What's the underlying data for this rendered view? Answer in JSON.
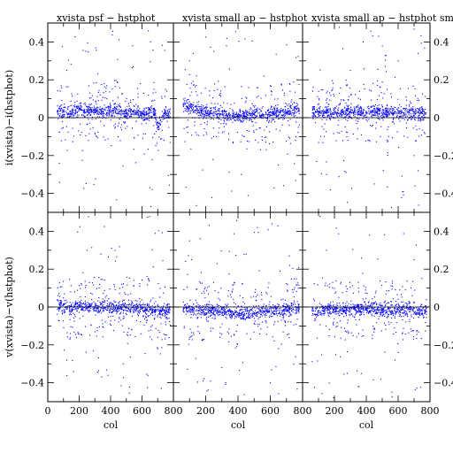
{
  "chart_data": [
    {
      "type": "scatter",
      "title": "xvista psf − hstphot",
      "xlabel": "",
      "ylabel": "i(xvista)−i(hstphot)",
      "xlim": [
        0,
        800
      ],
      "ylim": [
        -0.5,
        0.5
      ],
      "x_ticks": [],
      "y_ticks": [
        "0.4",
        "0.2",
        "0",
        "−0.2",
        "−0.4"
      ],
      "y_ticks_right": [],
      "points": [
        [
          80,
          0.035
        ],
        [
          140,
          0.02
        ],
        [
          200,
          0.05
        ],
        [
          260,
          0.03
        ],
        [
          320,
          0.04
        ],
        [
          380,
          0.025
        ],
        [
          440,
          0.045
        ],
        [
          500,
          0.02
        ],
        [
          560,
          0.035
        ],
        [
          620,
          0.015
        ],
        [
          680,
          0.03
        ],
        [
          740,
          0.02
        ],
        [
          120,
          0.25
        ],
        [
          360,
          0.18
        ],
        [
          540,
          0.38
        ],
        [
          650,
          -0.37
        ],
        [
          300,
          -0.08
        ],
        [
          700,
          -0.05
        ]
      ]
    },
    {
      "type": "scatter",
      "title": "xvista small ap − hstphot",
      "xlabel": "",
      "ylabel": "",
      "xlim": [
        0,
        800
      ],
      "ylim": [
        -0.5,
        0.5
      ],
      "x_ticks": [],
      "y_ticks": [],
      "y_ticks_right": [],
      "points": [
        [
          80,
          0.06
        ],
        [
          140,
          0.04
        ],
        [
          200,
          0.03
        ],
        [
          260,
          0.02
        ],
        [
          320,
          0.01
        ],
        [
          380,
          0.005
        ],
        [
          440,
          0.01
        ],
        [
          500,
          0.02
        ],
        [
          560,
          0.015
        ],
        [
          620,
          0.025
        ],
        [
          680,
          0.03
        ],
        [
          740,
          0.04
        ],
        [
          100,
          0.3
        ],
        [
          250,
          0.35
        ],
        [
          420,
          -0.3
        ],
        [
          560,
          0.22
        ],
        [
          650,
          -0.25
        ],
        [
          720,
          0.18
        ]
      ]
    },
    {
      "type": "scatter",
      "title": "xvista small ap − hstphot small ap",
      "xlabel": "",
      "ylabel": "",
      "xlim": [
        0,
        800
      ],
      "ylim": [
        -0.5,
        0.5
      ],
      "x_ticks": [],
      "y_ticks": [],
      "y_ticks_right": [
        "0.4",
        "0.2",
        "0",
        "−0.2",
        "−0.4"
      ],
      "points": [
        [
          80,
          0.03
        ],
        [
          140,
          0.025
        ],
        [
          200,
          0.03
        ],
        [
          260,
          0.035
        ],
        [
          320,
          0.03
        ],
        [
          380,
          0.03
        ],
        [
          440,
          0.035
        ],
        [
          500,
          0.03
        ],
        [
          560,
          0.025
        ],
        [
          620,
          0.03
        ],
        [
          680,
          0.02
        ],
        [
          740,
          0.025
        ],
        [
          150,
          -0.3
        ],
        [
          300,
          0.25
        ],
        [
          450,
          -0.35
        ],
        [
          600,
          0.3
        ],
        [
          700,
          -0.2
        ],
        [
          380,
          0.4
        ]
      ]
    },
    {
      "type": "scatter",
      "title": "",
      "xlabel": "col",
      "ylabel": "v(xvista)−v(hstphot)",
      "xlim": [
        0,
        800
      ],
      "ylim": [
        -0.5,
        0.5
      ],
      "x_ticks": [
        "0",
        "200",
        "400",
        "600",
        "800"
      ],
      "y_ticks": [
        "0.4",
        "0.2",
        "0",
        "−0.2",
        "−0.4"
      ],
      "y_ticks_right": [],
      "points": [
        [
          80,
          0.005
        ],
        [
          140,
          -0.01
        ],
        [
          200,
          0.01
        ],
        [
          260,
          0.0
        ],
        [
          320,
          -0.005
        ],
        [
          380,
          0.005
        ],
        [
          440,
          -0.01
        ],
        [
          500,
          0.0
        ],
        [
          560,
          -0.005
        ],
        [
          620,
          -0.01
        ],
        [
          680,
          -0.015
        ],
        [
          740,
          -0.02
        ],
        [
          120,
          -0.28
        ],
        [
          330,
          0.12
        ],
        [
          480,
          -0.3
        ],
        [
          640,
          0.15
        ],
        [
          700,
          -0.22
        ],
        [
          250,
          0.3
        ]
      ]
    },
    {
      "type": "scatter",
      "title": "",
      "xlabel": "col",
      "ylabel": "",
      "xlim": [
        0,
        800
      ],
      "ylim": [
        -0.5,
        0.5
      ],
      "x_ticks": [
        "200",
        "400",
        "600",
        "800"
      ],
      "y_ticks": [],
      "y_ticks_right": [],
      "points": [
        [
          80,
          -0.01
        ],
        [
          140,
          -0.02
        ],
        [
          200,
          -0.015
        ],
        [
          260,
          -0.02
        ],
        [
          320,
          -0.025
        ],
        [
          380,
          -0.03
        ],
        [
          440,
          -0.035
        ],
        [
          500,
          -0.03
        ],
        [
          560,
          -0.025
        ],
        [
          620,
          -0.02
        ],
        [
          680,
          -0.015
        ],
        [
          740,
          -0.01
        ],
        [
          100,
          0.35
        ],
        [
          300,
          -0.32
        ],
        [
          450,
          0.28
        ],
        [
          600,
          -0.4
        ],
        [
          720,
          0.22
        ],
        [
          520,
          0.42
        ]
      ]
    },
    {
      "type": "scatter",
      "title": "",
      "xlabel": "col",
      "ylabel": "",
      "xlim": [
        0,
        800
      ],
      "ylim": [
        -0.5,
        0.5
      ],
      "x_ticks": [
        "200",
        "400",
        "600",
        "800"
      ],
      "y_ticks": [],
      "y_ticks_right": [
        "0.4",
        "0.2",
        "0",
        "−0.2",
        "−0.4"
      ],
      "points": [
        [
          80,
          -0.02
        ],
        [
          140,
          -0.015
        ],
        [
          200,
          -0.01
        ],
        [
          260,
          -0.015
        ],
        [
          320,
          -0.01
        ],
        [
          380,
          -0.005
        ],
        [
          440,
          -0.01
        ],
        [
          500,
          -0.015
        ],
        [
          560,
          -0.02
        ],
        [
          620,
          -0.015
        ],
        [
          680,
          -0.01
        ],
        [
          740,
          -0.02
        ],
        [
          150,
          0.3
        ],
        [
          280,
          -0.35
        ],
        [
          420,
          0.38
        ],
        [
          580,
          -0.28
        ],
        [
          700,
          0.25
        ],
        [
          350,
          -0.42
        ]
      ]
    }
  ]
}
